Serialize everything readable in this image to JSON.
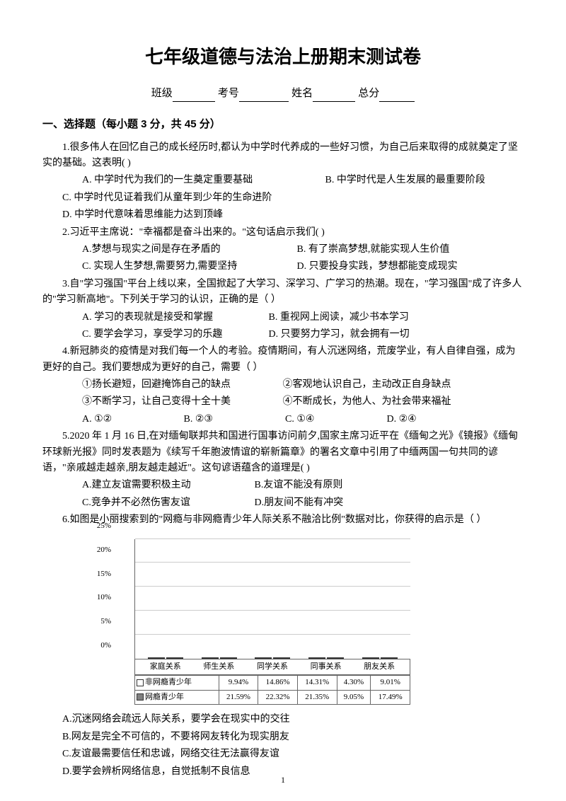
{
  "title": "七年级道德与法治上册期末测试卷",
  "info": {
    "class_label": "班级",
    "exam_label": "考号",
    "name_label": "姓名",
    "score_label": "总分"
  },
  "section1_title": "一、选择题（每小题 3 分，共 45 分）",
  "q1": {
    "stem": "1.很多伟人在回忆自己的成长经历时,都认为中学时代养成的一些好习惯，为自己后来取得的成就奠定了坚实的基础。这表明( )",
    "a": "A. 中学时代为我们的一生奠定重要基础",
    "b": "B. 中学时代是人生发展的最重要阶段",
    "c": "C. 中学时代见证着我们从童年到少年的生命进阶",
    "d": "D. 中学时代意味着思维能力达到顶峰"
  },
  "q2": {
    "stem": "2.习近平主席说：\"幸福都是奋斗出来的。\"这句话启示我们( )",
    "a": "A.梦想与现实之间是存在矛盾的",
    "b": "B. 有了崇高梦想,就能实现人生价值",
    "c": "C. 实现人生梦想,需要努力,需要坚持",
    "d": "D. 只要投身实践，梦想都能变成现实"
  },
  "q3": {
    "stem": "3.自\"学习强国\"平台上线以来，全国掀起了大学习、深学习、广学习的热潮。现在，\"学习强国\"成了许多人的\"学习新高地\"。下列关于学习的认识，正确的是（ ）",
    "a": "A. 学习的表现就是接受和掌握",
    "b": "B. 重视网上阅读，减少书本学习",
    "c": "C. 要学会学习，享受学习的乐趣",
    "d": "D. 只要努力学习，就会拥有一切"
  },
  "q4": {
    "stem": "4.新冠肺炎的疫情是对我们每一个人的考验。疫情期间，有人沉迷网络，荒废学业，有人自律自强，成为更好的自己。我们要想成为更好的自己，需要（ ）",
    "o1": "①扬长避短，回避掩饰自己的缺点",
    "o2": "②客观地认识自己，主动改正自身缺点",
    "o3": "③不断学习，让自己变得十全十美",
    "o4": "④不断成长，为他人、为社会带来福祉",
    "a": "A. ①②",
    "b": "B. ②③",
    "c": "C. ①④",
    "d": "D. ②④"
  },
  "q5": {
    "stem": "5.2020 年 1 月 16 日,在对缅甸联邦共和国进行国事访问前夕,国家主席习近平在《缅甸之光》《镜报》《缅甸环球新光报》同时发表题为《续写千年胞波情谊的崭新篇章》的署名文章中引用了中缅两国一句共同的谚语，\"亲戚越走越亲,朋友越走越近\"。这句谚语蕴含的道理是( )",
    "a": "A.建立友谊需要积极主动",
    "b": "B.友谊不能没有原则",
    "c": "C.竞争并不必然伤害友谊",
    "d": "D.朋友间不能有冲突"
  },
  "q6": {
    "stem": "6.如图是小丽搜索到的\"网瘾与非网瘾青少年人际关系不融洽比例\"数据对比，你获得的启示是（ ）",
    "a": "A.沉迷网络会疏远人际关系，要学会在现实中的交往",
    "b": "B.网友是完全不可信的，不要将网友转化为现实朋友",
    "c": "C.友谊最需要信任和忠诚，网络交往无法赢得友谊",
    "d": "D.要学会辨析网络信息，自觉抵制不良信息"
  },
  "chart": {
    "type": "bar",
    "ylim": [
      0,
      25
    ],
    "ytick_step": 5,
    "ylabels": [
      "0%",
      "5%",
      "10%",
      "15%",
      "20%",
      "25%"
    ],
    "categories": [
      "家庭关系",
      "师生关系",
      "同学关系",
      "同事关系",
      "朋友关系"
    ],
    "series1_name": "非网瘾青少年",
    "series2_name": "网瘾青少年",
    "series1": [
      9.94,
      14.86,
      14.31,
      4.3,
      9.01
    ],
    "series2": [
      21.59,
      22.32,
      21.35,
      9.05,
      17.49
    ],
    "series1_display": [
      "9.94%",
      "14.86%",
      "14.31%",
      "4.30%",
      "9.01%"
    ],
    "series2_display": [
      "21.59%",
      "22.32%",
      "21.35%",
      "9.05%",
      "17.49%"
    ],
    "bar_light_color": "#ffffff",
    "bar_dark_color": "#808080",
    "grid_color": "#cccccc"
  },
  "page_number": "1"
}
